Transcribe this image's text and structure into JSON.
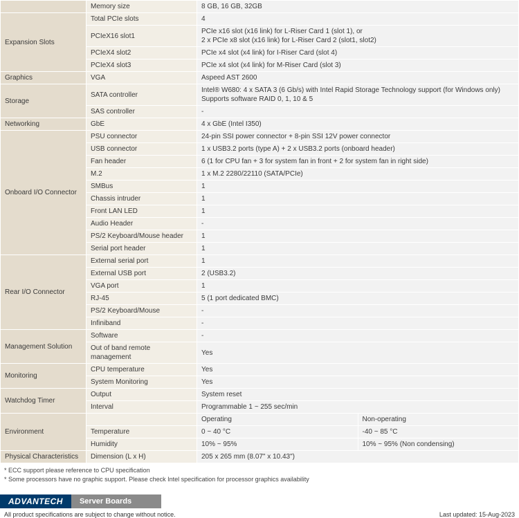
{
  "colgroups": {
    "cat_w": 124,
    "attr_w": 160
  },
  "rows": [
    {
      "cat": "",
      "cat_rowspan": 1,
      "attr": "Memory size",
      "vals": [
        "8 GB, 16 GB, 32GB"
      ]
    },
    {
      "cat": "Expansion Slots",
      "cat_rowspan": 4,
      "attr": "Total PCIe slots",
      "vals": [
        "4"
      ]
    },
    {
      "attr": "PCIeX16 slot1",
      "vals": [
        "PCIe x16 slot (x16 link) for L-Riser Card 1 (slot 1), or\n2 x PCIe x8 slot (x16 link) for L-Riser Card 2 (slot1, slot2)"
      ]
    },
    {
      "attr": "PCIeX4 slot2",
      "vals": [
        "PCIe x4 slot (x4 link) for I-Riser Card (slot 4)"
      ]
    },
    {
      "attr": "PCIeX4 slot3",
      "vals": [
        "PCIe x4 slot (x4 link) for M-Riser Card (slot 3)"
      ]
    },
    {
      "cat": "Graphics",
      "cat_rowspan": 1,
      "attr": "VGA",
      "vals": [
        "Aspeed AST 2600"
      ]
    },
    {
      "cat": "Storage",
      "cat_rowspan": 2,
      "attr": "SATA controller",
      "vals": [
        "Intel® W680: 4 x SATA 3 (6 Gb/s) with Intel Rapid Storage Technology support (for Windows only)\nSupports software RAID 0, 1, 10 & 5"
      ]
    },
    {
      "attr": "SAS controller",
      "vals": [
        "-"
      ]
    },
    {
      "cat": "Networking",
      "cat_rowspan": 1,
      "attr": "GbE",
      "vals": [
        "4 x GbE (Intel I350)"
      ]
    },
    {
      "cat": "Onboard I/O Connector",
      "cat_rowspan": 10,
      "attr": "PSU connector",
      "vals": [
        "24-pin SSI power connector + 8-pin SSI 12V power connector"
      ]
    },
    {
      "attr": "USB connector",
      "vals": [
        "1 x USB3.2 ports (type A) + 2 x USB3.2 ports (onboard header)"
      ]
    },
    {
      "attr": "Fan header",
      "vals": [
        "6 (1 for CPU fan + 3 for system fan in front + 2 for system fan in right side)"
      ]
    },
    {
      "attr": "M.2",
      "vals": [
        "1 x M.2 2280/22110 (SATA/PCIe)"
      ]
    },
    {
      "attr": "SMBus",
      "vals": [
        "1"
      ]
    },
    {
      "attr": "Chassis intruder",
      "vals": [
        "1"
      ]
    },
    {
      "attr": "Front LAN LED",
      "vals": [
        "1"
      ]
    },
    {
      "attr": "Audio Header",
      "vals": [
        "-"
      ]
    },
    {
      "attr": "PS/2 Keyboard/Mouse header",
      "vals": [
        "1"
      ]
    },
    {
      "attr": "Serial port header",
      "vals": [
        "1"
      ]
    },
    {
      "cat": "Rear I/O Connector",
      "cat_rowspan": 6,
      "attr": "External serial port",
      "vals": [
        "1"
      ]
    },
    {
      "attr": "External USB port",
      "vals": [
        "2 (USB3.2)"
      ]
    },
    {
      "attr": "VGA port",
      "vals": [
        "1"
      ]
    },
    {
      "attr": "RJ-45",
      "vals": [
        "5 (1 port dedicated BMC)"
      ]
    },
    {
      "attr": "PS/2 Keyboard/Mouse",
      "vals": [
        "-"
      ]
    },
    {
      "attr": "Infiniband",
      "vals": [
        "-"
      ]
    },
    {
      "cat": "Management Solution",
      "cat_rowspan": 2,
      "attr": "Software",
      "vals": [
        "-"
      ]
    },
    {
      "attr": "Out of band remote management",
      "vals": [
        "Yes"
      ]
    },
    {
      "cat": "Monitoring",
      "cat_rowspan": 2,
      "attr": "CPU temperature",
      "vals": [
        "Yes"
      ]
    },
    {
      "attr": "System Monitoring",
      "vals": [
        "Yes"
      ]
    },
    {
      "cat": "Watchdog Timer",
      "cat_rowspan": 2,
      "attr": "Output",
      "vals": [
        "System reset"
      ]
    },
    {
      "attr": "Interval",
      "vals": [
        "Programmable 1 ~ 255 sec/min"
      ]
    },
    {
      "cat": "Environment",
      "cat_rowspan": 3,
      "attr": "",
      "vals": [
        "Operating",
        "Non-operating"
      ]
    },
    {
      "attr": "Temperature",
      "vals": [
        "0 ~ 40 °C",
        "-40 ~ 85 °C"
      ]
    },
    {
      "attr": "Humidity",
      "vals": [
        "10% ~ 95%",
        "10% ~ 95% (Non condensing)"
      ]
    },
    {
      "cat": "Physical Characteristics",
      "cat_rowspan": 1,
      "attr": "Dimension (L x H)",
      "vals": [
        "205 x 265 mm (8.07\" x 10.43\")"
      ]
    }
  ],
  "footnotes": [
    "* ECC support please reference to CPU specification",
    "* Some processors have no graphic support. Please check Intel specification for processor graphics availability"
  ],
  "footer": {
    "brand": "ADVANTECH",
    "section": "Server Boards",
    "disclaimer": "All product specifications are subject to change without notice.",
    "last_updated": "Last updated: 15-Aug-2023"
  }
}
